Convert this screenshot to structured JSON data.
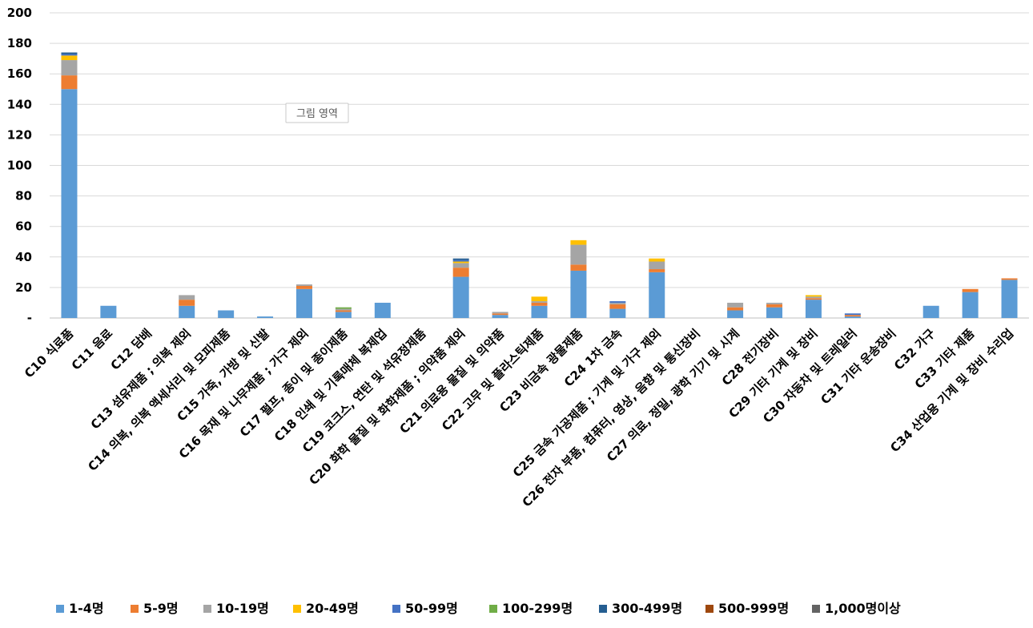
{
  "chart_data": {
    "type": "bar",
    "stacked": true,
    "categories": [
      "C10 식료품",
      "C11 음료",
      "C12 담배",
      "C13 섬유제품 ; 의복 제외",
      "C14 의복, 의복 액세서리 및 모피제품",
      "C15 가죽, 가방 및 신발",
      "C16 목재 및 나무제품 ; 가구 제외",
      "C17 펄프, 종이 및 종이제품",
      "C18 인쇄 및 기록매체 복제업",
      "C19 코크스, 연탄 및 석유정제품",
      "C20 화학 물질 및 화학제품 ; 의약품 제외",
      "C21 의료용 물질 및 의약품",
      "C22 고무 및 플라스틱제품",
      "C23 비금속 광물제품",
      "C24 1차 금속",
      "C25 금속 가공제품 ; 기계 및 가구 제외",
      "C26 전자 부품, 컴퓨터, 영상, 음향 및 통신장비",
      "C27 의료, 정밀, 광학 기기 및 시계",
      "C28 전기장비",
      "C29 기타 기계 및 장비",
      "C30 자동차 및 트레일러",
      "C31 기타 운송장비",
      "C32 가구",
      "C33 기타 제품",
      "C34 산업용 기계 및 장비 수리업"
    ],
    "series": [
      {
        "name": "1-4명",
        "color": "#5B9BD5",
        "values": [
          150,
          8,
          0,
          8,
          5,
          1,
          19,
          4,
          10,
          0,
          27,
          2,
          8,
          31,
          6,
          30,
          0,
          5,
          7,
          12,
          1,
          0,
          8,
          17,
          25
        ]
      },
      {
        "name": "5-9명",
        "color": "#ED7D31",
        "values": [
          9,
          0,
          0,
          4,
          0,
          0,
          2,
          1,
          0,
          0,
          6,
          1,
          2,
          4,
          3,
          2,
          0,
          2,
          2,
          1,
          1,
          0,
          0,
          2,
          1
        ]
      },
      {
        "name": "10-19명",
        "color": "#A5A5A5",
        "values": [
          10,
          0,
          0,
          3,
          0,
          0,
          1,
          1,
          0,
          0,
          3,
          1,
          1,
          13,
          1,
          5,
          0,
          3,
          1,
          1,
          0,
          0,
          0,
          0,
          0
        ]
      },
      {
        "name": "20-49명",
        "color": "#FFC000",
        "values": [
          3,
          0,
          0,
          0,
          0,
          0,
          0,
          0,
          0,
          0,
          1,
          0,
          3,
          3,
          0,
          2,
          0,
          0,
          0,
          1,
          0,
          0,
          0,
          0,
          0
        ]
      },
      {
        "name": "50-99명",
        "color": "#4472C4",
        "values": [
          1,
          0,
          0,
          0,
          0,
          0,
          0,
          0,
          0,
          0,
          1,
          0,
          0,
          0,
          1,
          0,
          0,
          0,
          0,
          0,
          1,
          0,
          0,
          0,
          0
        ]
      },
      {
        "name": "100-299명",
        "color": "#70AD47",
        "values": [
          0,
          0,
          0,
          0,
          0,
          0,
          0,
          1,
          0,
          0,
          0,
          0,
          0,
          0,
          0,
          0,
          0,
          0,
          0,
          0,
          0,
          0,
          0,
          0,
          0
        ]
      },
      {
        "name": "300-499명",
        "color": "#255E91",
        "values": [
          1,
          0,
          0,
          0,
          0,
          0,
          0,
          0,
          0,
          0,
          1,
          0,
          0,
          0,
          0,
          0,
          0,
          0,
          0,
          0,
          0,
          0,
          0,
          0,
          0
        ]
      },
      {
        "name": "500-999명",
        "color": "#9E480E",
        "values": [
          0,
          0,
          0,
          0,
          0,
          0,
          0,
          0,
          0,
          0,
          0,
          0,
          0,
          0,
          0,
          0,
          0,
          0,
          0,
          0,
          0,
          0,
          0,
          0,
          0
        ]
      },
      {
        "name": "1,000명이상",
        "color": "#636363",
        "values": [
          0,
          0,
          0,
          0,
          0,
          0,
          0,
          0,
          0,
          0,
          0,
          0,
          0,
          0,
          0,
          0,
          0,
          0,
          0,
          0,
          0,
          0,
          0,
          0,
          0
        ]
      }
    ],
    "yticks": [
      "-",
      "20",
      "40",
      "60",
      "80",
      "100",
      "120",
      "140",
      "160",
      "180",
      "200"
    ],
    "ylim": [
      0,
      200
    ],
    "grid": true,
    "legend_position": "bottom",
    "annotation": "그림 영역"
  }
}
